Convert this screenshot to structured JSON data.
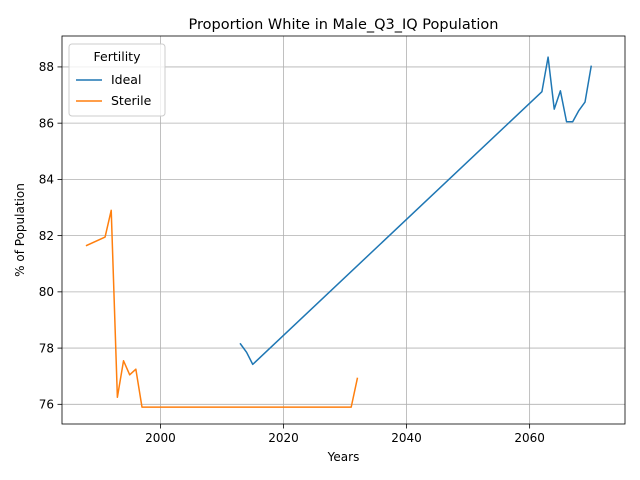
{
  "chart_data": {
    "type": "line",
    "title": "Proportion White in Male_Q3_IQ Population",
    "xlabel": "Years",
    "ylabel": "% of Population",
    "xlim": [
      1984,
      2075.5
    ],
    "ylim": [
      75.3,
      89.1
    ],
    "xticks": [
      2000,
      2020,
      2040,
      2060
    ],
    "yticks": [
      76,
      78,
      80,
      82,
      84,
      86,
      88
    ],
    "grid": true,
    "legend": {
      "title": "Fertility",
      "position": "top-left"
    },
    "series": [
      {
        "name": "Ideal",
        "color": "#1f77b4",
        "points": [
          [
            2013,
            78.15
          ],
          [
            2014,
            77.85
          ],
          [
            2015,
            77.42
          ],
          [
            2062,
            87.12
          ],
          [
            2063,
            88.35
          ],
          [
            2064,
            86.5
          ],
          [
            2065,
            87.15
          ],
          [
            2066,
            86.05
          ],
          [
            2067,
            86.05
          ],
          [
            2068,
            86.45
          ],
          [
            2069,
            86.75
          ],
          [
            2070,
            88.02
          ]
        ]
      },
      {
        "name": "Sterile",
        "color": "#ff7f0e",
        "points": [
          [
            1988,
            81.65
          ],
          [
            1991,
            81.95
          ],
          [
            1992,
            82.9
          ],
          [
            1993,
            76.25
          ],
          [
            1994,
            77.55
          ],
          [
            1995,
            77.05
          ],
          [
            1996,
            77.25
          ],
          [
            1997,
            75.9
          ],
          [
            2031,
            75.9
          ],
          [
            2032,
            76.92
          ]
        ]
      }
    ]
  }
}
